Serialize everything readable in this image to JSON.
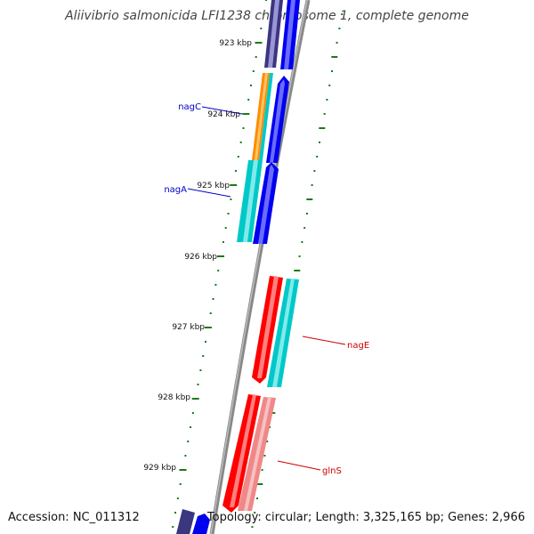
{
  "title": "Aliivibrio salmonicida LFI1238 chromosome 1, complete genome",
  "footer": {
    "accession": "Accession: NC_011312",
    "stats": "Topology: circular; Length: 3,325,165 bp; Genes: 2,966"
  },
  "colors": {
    "backbone": "#888888",
    "tick": "#1a7a1a",
    "blue_gene": "#0000ee",
    "purple_gene": "#3b3680",
    "orange_gene": "#ff8c00",
    "cyan_gene": "#00c8c8",
    "red_gene": "#ff0000",
    "pink_gene": "#ef8888",
    "forward_label": "#0000cc",
    "reverse_label": "#cc0000"
  },
  "ticks": [
    {
      "label": "923 kbp"
    },
    {
      "label": "924 kbp"
    },
    {
      "label": "925 kbp"
    },
    {
      "label": "926 kbp"
    },
    {
      "label": "927 kbp"
    },
    {
      "label": "928 kbp"
    },
    {
      "label": "929 kbp"
    }
  ],
  "gene_labels": [
    {
      "name": "nagC"
    },
    {
      "name": "nagA"
    },
    {
      "name": "nagE"
    },
    {
      "name": "glnS"
    }
  ]
}
